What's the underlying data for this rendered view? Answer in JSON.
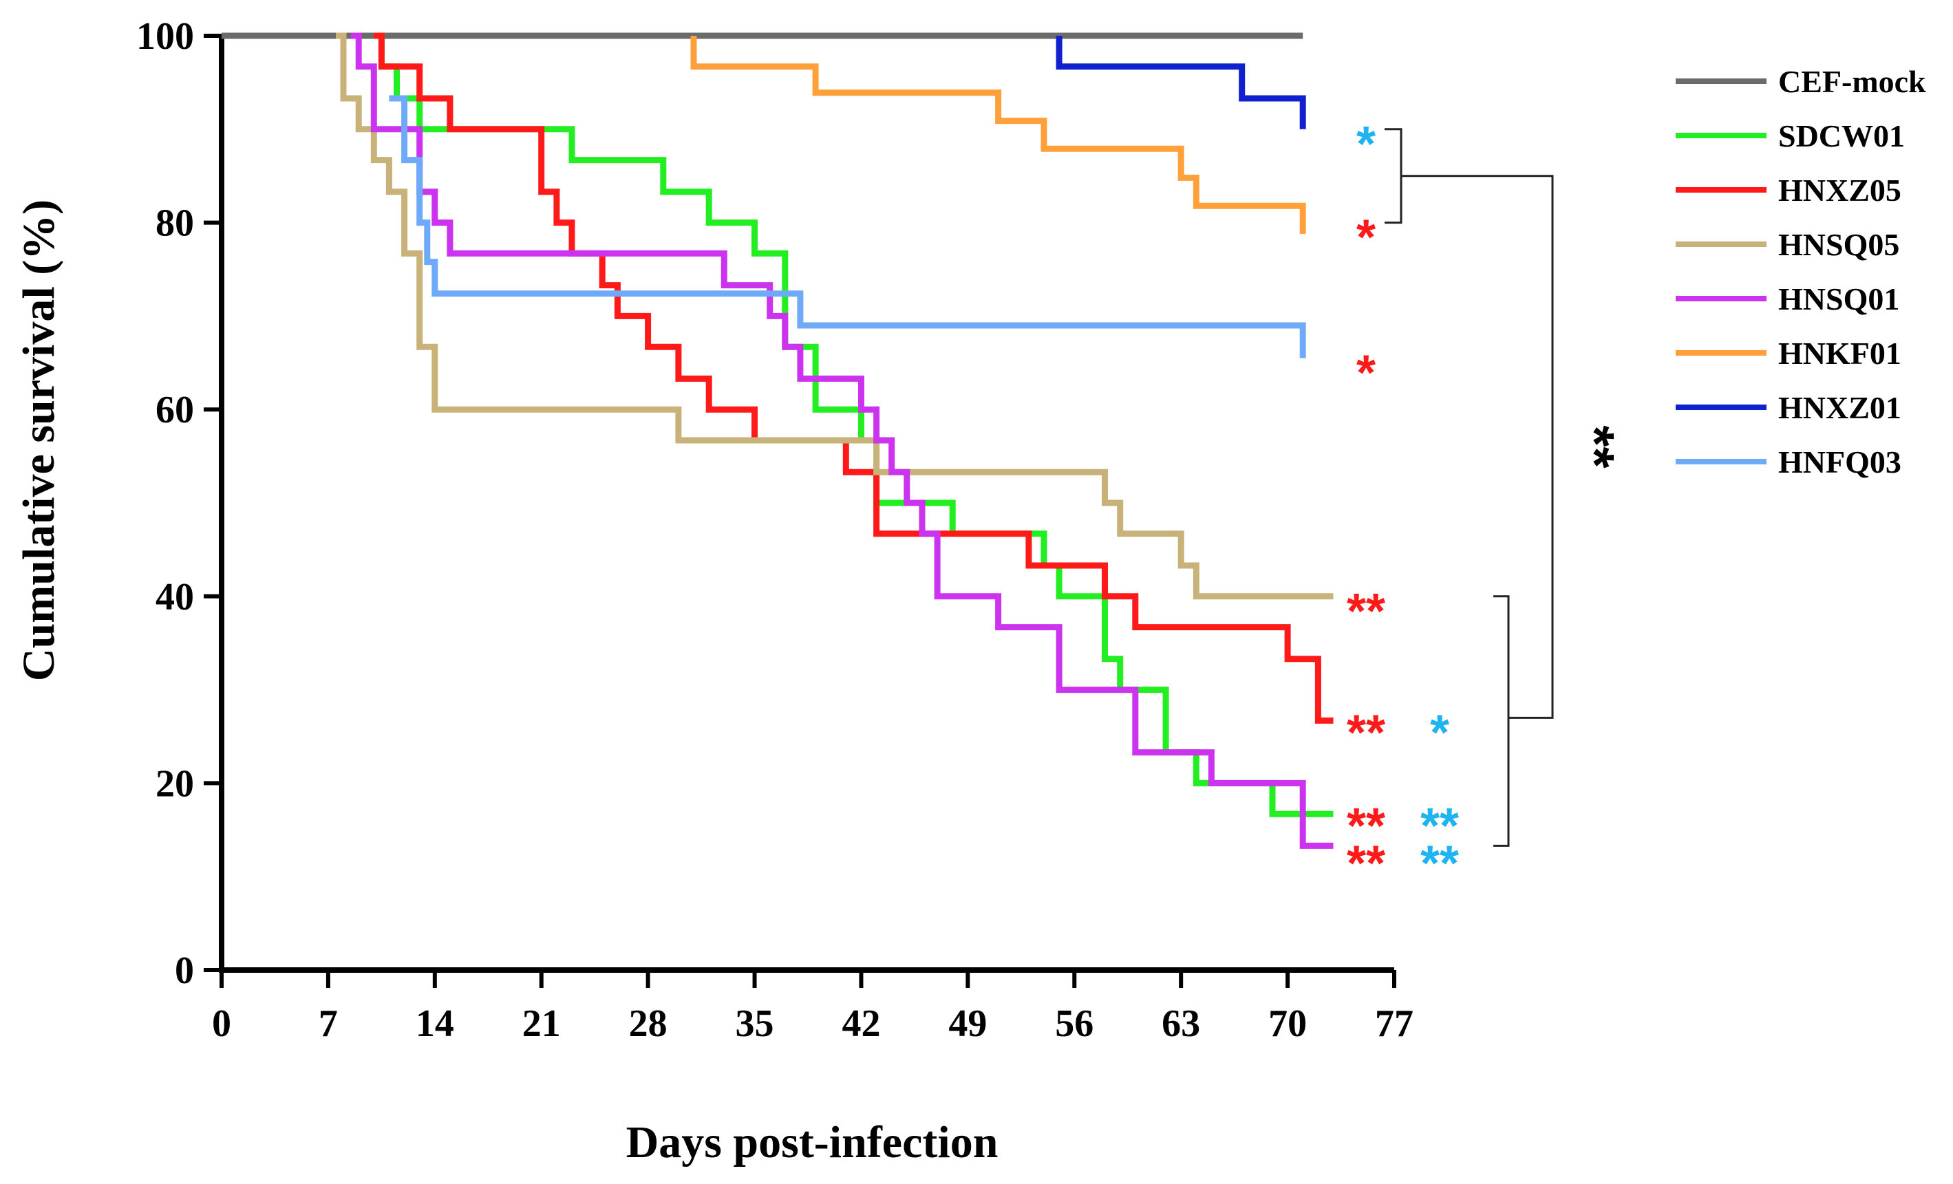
{
  "chart_data": {
    "type": "line",
    "step": true,
    "xlabel": "Days post-infection",
    "ylabel": "Cumulative survival (%)",
    "xlim": [
      0,
      77
    ],
    "ylim": [
      0,
      100
    ],
    "xticks": [
      0,
      7,
      14,
      21,
      28,
      35,
      42,
      49,
      56,
      63,
      70,
      77
    ],
    "yticks": [
      0,
      20,
      40,
      60,
      80,
      100
    ],
    "legend_position": "right",
    "series": [
      {
        "name": "CEF-mock",
        "color": "#6b6b6b",
        "points": [
          [
            0,
            100
          ],
          [
            71,
            100
          ]
        ]
      },
      {
        "name": "SDCW01",
        "color": "#22ee22",
        "points": [
          [
            10,
            100
          ],
          [
            10.5,
            96.7
          ],
          [
            11.5,
            93.3
          ],
          [
            13,
            90
          ],
          [
            23,
            86.7
          ],
          [
            29,
            83.3
          ],
          [
            32,
            80
          ],
          [
            35,
            76.7
          ],
          [
            37,
            66.7
          ],
          [
            39,
            60
          ],
          [
            42,
            56.7
          ],
          [
            43,
            50
          ],
          [
            48,
            46.7
          ],
          [
            54,
            43.3
          ],
          [
            55,
            40
          ],
          [
            58,
            33.3
          ],
          [
            59,
            30
          ],
          [
            62,
            23.3
          ],
          [
            64,
            20
          ],
          [
            69,
            16.7
          ],
          [
            73,
            16.7
          ]
        ]
      },
      {
        "name": "HNXZ05",
        "color": "#ff1a1a",
        "points": [
          [
            10,
            100
          ],
          [
            10.5,
            96.7
          ],
          [
            13,
            93.3
          ],
          [
            15,
            90
          ],
          [
            21,
            83.3
          ],
          [
            22,
            80
          ],
          [
            23,
            76.7
          ],
          [
            25,
            73.3
          ],
          [
            26,
            70
          ],
          [
            28,
            66.7
          ],
          [
            30,
            63.3
          ],
          [
            32,
            60
          ],
          [
            35,
            56.7
          ],
          [
            41,
            53.3
          ],
          [
            43,
            46.7
          ],
          [
            53,
            43.3
          ],
          [
            58,
            40
          ],
          [
            60,
            36.7
          ],
          [
            70,
            33.3
          ],
          [
            72,
            26.7
          ],
          [
            73,
            26.7
          ]
        ]
      },
      {
        "name": "HNSQ05",
        "color": "#c8b27a",
        "points": [
          [
            7.5,
            100
          ],
          [
            8,
            93.3
          ],
          [
            9,
            90
          ],
          [
            10,
            86.7
          ],
          [
            11,
            83.3
          ],
          [
            12,
            76.7
          ],
          [
            13,
            66.7
          ],
          [
            14,
            60
          ],
          [
            30,
            56.7
          ],
          [
            35,
            56.7
          ],
          [
            43,
            53.3
          ],
          [
            58,
            50
          ],
          [
            59,
            46.7
          ],
          [
            63,
            43.3
          ],
          [
            64,
            40
          ],
          [
            73,
            40
          ]
        ]
      },
      {
        "name": "HNSQ01",
        "color": "#cc33ee",
        "points": [
          [
            8.5,
            100
          ],
          [
            9,
            96.7
          ],
          [
            10,
            90
          ],
          [
            13,
            83.3
          ],
          [
            14,
            80
          ],
          [
            15,
            76.7
          ],
          [
            33,
            73.3
          ],
          [
            36,
            70
          ],
          [
            37,
            66.7
          ],
          [
            38,
            63.3
          ],
          [
            42,
            60
          ],
          [
            43,
            56.7
          ],
          [
            44,
            53.3
          ],
          [
            45,
            50
          ],
          [
            46,
            46.7
          ],
          [
            47,
            40
          ],
          [
            51,
            36.7
          ],
          [
            55,
            30
          ],
          [
            60,
            23.3
          ],
          [
            63,
            23.3
          ],
          [
            65,
            20
          ],
          [
            71,
            13.3
          ],
          [
            73,
            13.3
          ]
        ]
      },
      {
        "name": "HNKF01",
        "color": "#ffa03a",
        "points": [
          [
            31,
            100
          ],
          [
            31,
            96.7
          ],
          [
            39,
            93.9
          ],
          [
            51,
            90.9
          ],
          [
            54,
            87.9
          ],
          [
            63,
            84.8
          ],
          [
            64,
            81.8
          ],
          [
            71,
            78.8
          ]
        ]
      },
      {
        "name": "HNXZ01",
        "color": "#1020cc",
        "points": [
          [
            55,
            100
          ],
          [
            55,
            96.7
          ],
          [
            67,
            93.3
          ],
          [
            71,
            90
          ]
        ]
      },
      {
        "name": "HNFQ03",
        "color": "#6eaaf7",
        "points": [
          [
            11,
            93.3
          ],
          [
            12,
            86.7
          ],
          [
            13,
            80
          ],
          [
            13.5,
            75.8
          ],
          [
            14,
            72.4
          ],
          [
            38,
            69
          ],
          [
            71,
            65.5
          ]
        ]
      }
    ],
    "annotations": [
      {
        "series": "HNXZ01",
        "y": 90,
        "marks": [
          {
            "text": "*",
            "color": "#1eb4f0"
          }
        ]
      },
      {
        "series": "HNKF01",
        "y": 80,
        "marks": [
          {
            "text": "*",
            "color": "#ff1a1a"
          }
        ]
      },
      {
        "series": "HNFQ03",
        "y": 65.5,
        "marks": [
          {
            "text": "*",
            "color": "#ff1a1a"
          }
        ]
      },
      {
        "series": "HNSQ05",
        "y": 40,
        "marks": [
          {
            "text": "**",
            "color": "#ff1a1a"
          }
        ]
      },
      {
        "series": "HNXZ05",
        "y": 27,
        "marks": [
          {
            "text": "**",
            "color": "#ff1a1a"
          },
          {
            "text": "*",
            "color": "#1eb4f0"
          }
        ]
      },
      {
        "series": "SDCW01",
        "y": 17,
        "marks": [
          {
            "text": "**",
            "color": "#ff1a1a"
          },
          {
            "text": "**",
            "color": "#1eb4f0"
          }
        ]
      },
      {
        "series": "HNSQ01",
        "y": 13,
        "marks": [
          {
            "text": "**",
            "color": "#ff1a1a"
          },
          {
            "text": "**",
            "color": "#1eb4f0"
          }
        ]
      }
    ],
    "group_comparison": {
      "text": "**",
      "color": "#000000"
    }
  }
}
